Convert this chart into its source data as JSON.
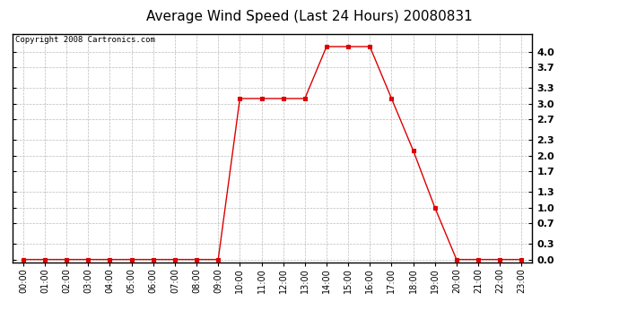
{
  "title": "Average Wind Speed (Last 24 Hours) 20080831",
  "copyright_text": "Copyright 2008 Cartronics.com",
  "hours": [
    "00:00",
    "01:00",
    "02:00",
    "03:00",
    "04:00",
    "05:00",
    "06:00",
    "07:00",
    "08:00",
    "09:00",
    "10:00",
    "11:00",
    "12:00",
    "13:00",
    "14:00",
    "15:00",
    "16:00",
    "17:00",
    "18:00",
    "19:00",
    "20:00",
    "21:00",
    "22:00",
    "23:00"
  ],
  "values": [
    0.0,
    0.0,
    0.0,
    0.0,
    0.0,
    0.0,
    0.0,
    0.0,
    0.0,
    0.0,
    3.1,
    3.1,
    3.1,
    3.1,
    4.1,
    4.1,
    4.1,
    3.1,
    2.1,
    1.0,
    0.0,
    0.0,
    0.0,
    0.0
  ],
  "ylim": [
    -0.05,
    4.35
  ],
  "yticks": [
    0.0,
    0.3,
    0.7,
    1.0,
    1.3,
    1.7,
    2.0,
    2.3,
    2.7,
    3.0,
    3.3,
    3.7,
    4.0
  ],
  "line_color": "#dd0000",
  "marker_color": "#dd0000",
  "bg_color": "#ffffff",
  "grid_color": "#bbbbbb",
  "title_fontsize": 11,
  "copyright_fontsize": 6.5,
  "tick_fontsize": 7,
  "ytick_fontsize": 8
}
